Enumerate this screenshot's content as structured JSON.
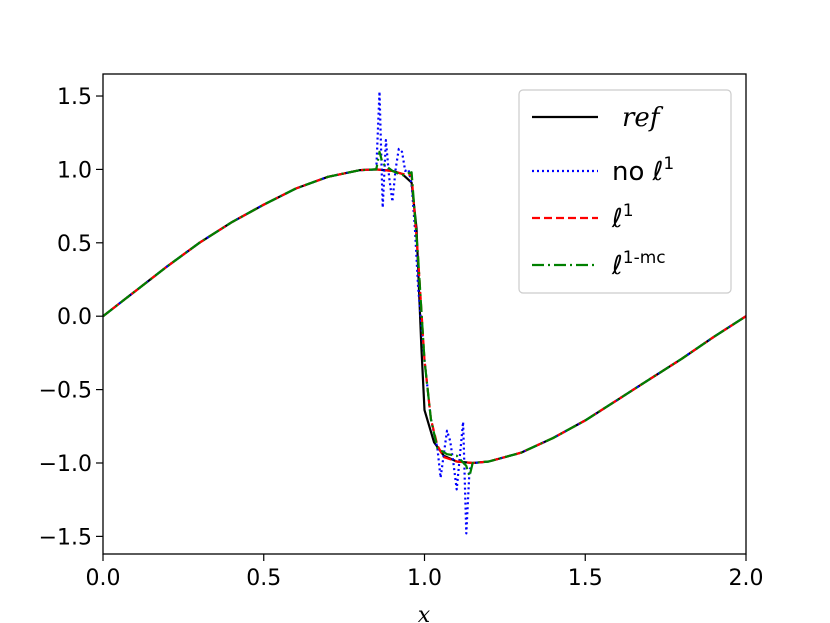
{
  "chart_data": {
    "type": "line",
    "title": "",
    "xlabel": "x",
    "ylabel": "",
    "xlim": [
      0.0,
      2.0
    ],
    "ylim": [
      -1.62,
      1.65
    ],
    "xticks": [
      0.0,
      0.5,
      1.0,
      1.5,
      2.0
    ],
    "xtick_labels": [
      "0.0",
      "0.5",
      "1.0",
      "1.5",
      "2.0"
    ],
    "yticks": [
      1.5,
      1.0,
      0.5,
      0.0,
      -0.5,
      -1.0,
      -1.5
    ],
    "ytick_labels": [
      "1.5",
      "1.0",
      "0.5",
      "0.0",
      "−0.5",
      "−1.0",
      "−1.5"
    ],
    "grid": false,
    "legend_position": "upper right",
    "series": [
      {
        "name": "ref",
        "color": "#000000",
        "style": "solid",
        "x": [
          0.0,
          0.1,
          0.2,
          0.3,
          0.4,
          0.5,
          0.6,
          0.7,
          0.8,
          0.85,
          0.9,
          0.93,
          0.96,
          0.975,
          0.99,
          1.0,
          1.03,
          1.06,
          1.1,
          1.15,
          1.2,
          1.3,
          1.4,
          1.5,
          1.6,
          1.7,
          1.8,
          1.9,
          2.0
        ],
        "y": [
          0.0,
          0.17,
          0.34,
          0.5,
          0.64,
          0.76,
          0.87,
          0.95,
          0.995,
          1.0,
          0.99,
          0.97,
          0.91,
          0.6,
          -0.2,
          -0.64,
          -0.86,
          -0.95,
          -0.99,
          -1.0,
          -0.99,
          -0.93,
          -0.83,
          -0.71,
          -0.57,
          -0.43,
          -0.29,
          -0.14,
          0.0
        ]
      },
      {
        "name": "no ℓ¹",
        "color": "#0000ff",
        "style": "dotted",
        "x": [
          0.0,
          0.1,
          0.2,
          0.3,
          0.4,
          0.5,
          0.6,
          0.7,
          0.8,
          0.85,
          0.86,
          0.87,
          0.88,
          0.89,
          0.9,
          0.91,
          0.92,
          0.93,
          0.94,
          0.95,
          0.96,
          0.97,
          0.98,
          1.0,
          1.02,
          1.04,
          1.05,
          1.06,
          1.07,
          1.08,
          1.09,
          1.1,
          1.11,
          1.12,
          1.13,
          1.14,
          1.15,
          1.2,
          1.3,
          1.4,
          1.5,
          1.6,
          1.7,
          1.8,
          1.9,
          2.0
        ],
        "y": [
          0.0,
          0.17,
          0.34,
          0.5,
          0.64,
          0.76,
          0.87,
          0.95,
          0.995,
          1.0,
          1.53,
          0.74,
          1.2,
          0.95,
          0.78,
          1.0,
          1.14,
          1.12,
          0.99,
          1.0,
          0.9,
          0.6,
          0.2,
          -0.3,
          -0.7,
          -0.9,
          -1.1,
          -0.94,
          -0.78,
          -0.85,
          -1.0,
          -1.18,
          -0.95,
          -0.72,
          -1.48,
          -1.05,
          -1.0,
          -0.99,
          -0.93,
          -0.83,
          -0.71,
          -0.57,
          -0.43,
          -0.29,
          -0.14,
          0.0
        ]
      },
      {
        "name": "ℓ¹",
        "color": "#ff0000",
        "style": "dashed",
        "x": [
          0.0,
          0.1,
          0.2,
          0.3,
          0.4,
          0.5,
          0.6,
          0.7,
          0.8,
          0.85,
          0.9,
          0.93,
          0.96,
          0.98,
          1.0,
          1.02,
          1.04,
          1.06,
          1.1,
          1.15,
          1.2,
          1.3,
          1.4,
          1.5,
          1.6,
          1.7,
          1.8,
          1.9,
          2.0
        ],
        "y": [
          0.0,
          0.17,
          0.34,
          0.5,
          0.64,
          0.76,
          0.87,
          0.95,
          0.995,
          1.0,
          0.99,
          0.97,
          0.96,
          0.4,
          -0.3,
          -0.7,
          -0.88,
          -0.96,
          -0.99,
          -1.0,
          -0.99,
          -0.93,
          -0.83,
          -0.71,
          -0.57,
          -0.43,
          -0.29,
          -0.14,
          0.0
        ]
      },
      {
        "name": "ℓ¹-mc",
        "color": "#008000",
        "style": "dashdot",
        "x": [
          0.0,
          0.1,
          0.2,
          0.3,
          0.4,
          0.5,
          0.6,
          0.7,
          0.8,
          0.85,
          0.86,
          0.87,
          0.9,
          0.93,
          0.96,
          0.98,
          1.0,
          1.02,
          1.04,
          1.07,
          1.1,
          1.13,
          1.14,
          1.15,
          1.2,
          1.3,
          1.4,
          1.5,
          1.6,
          1.7,
          1.8,
          1.9,
          2.0
        ],
        "y": [
          0.0,
          0.17,
          0.34,
          0.5,
          0.64,
          0.76,
          0.87,
          0.95,
          0.995,
          1.0,
          1.12,
          1.04,
          0.99,
          0.96,
          0.98,
          0.4,
          -0.3,
          -0.7,
          -0.9,
          -0.94,
          -0.95,
          -1.02,
          -1.09,
          -1.0,
          -0.99,
          -0.93,
          -0.83,
          -0.71,
          -0.57,
          -0.43,
          -0.29,
          -0.14,
          0.0
        ]
      }
    ],
    "legend_entries": [
      {
        "label_main": "ref",
        "label_sup": "",
        "italic": true
      },
      {
        "label_main": "no ℓ",
        "label_sup": "1",
        "italic": false
      },
      {
        "label_main": "ℓ",
        "label_sup": "1",
        "italic": false
      },
      {
        "label_main": "ℓ",
        "label_sup": "1-mc",
        "italic": false
      }
    ]
  }
}
